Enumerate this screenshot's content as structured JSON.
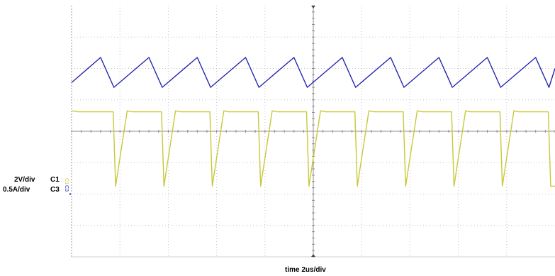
{
  "chart_data": {
    "type": "line",
    "title": "",
    "grid": true,
    "x_divisions": 10,
    "y_divisions": 8,
    "xlabel": "time 2us/div",
    "time_per_div": "2us/div",
    "x_unit": "us",
    "xlim": [
      0,
      20
    ],
    "channels": [
      {
        "id": "C1",
        "scale_label": "2V/div",
        "channel_label": "C1",
        "marker_label": "C1",
        "color": "#c8c83a",
        "ground_div": -2.0,
        "series": [
          {
            "name": "C1",
            "x": [
              0.0,
              0.28,
              0.5,
              0.95,
              1.05,
              1.35,
              1.55,
              1.72,
              1.82,
              2.3,
              2.5,
              2.95,
              3.05,
              3.35,
              3.55,
              3.72,
              3.82,
              4.3,
              4.5,
              4.95,
              5.05,
              5.35,
              5.55,
              5.72,
              5.82,
              6.3,
              6.5,
              6.95,
              7.05,
              7.35,
              7.55,
              7.72,
              7.82,
              8.3,
              8.5,
              8.95,
              9.05,
              9.35,
              9.55,
              9.72,
              9.82,
              10.3,
              10.5,
              10.95,
              11.05,
              11.35,
              11.55,
              11.72,
              11.82,
              12.3,
              12.5,
              12.95,
              13.05,
              13.35,
              13.55,
              13.72,
              13.82,
              14.3,
              14.5,
              14.95,
              15.05,
              15.35,
              15.55,
              15.72,
              15.82,
              16.3,
              16.5,
              16.95,
              17.05,
              17.35,
              17.55,
              17.72,
              17.82,
              18.3,
              18.5,
              18.95,
              19.05,
              19.35,
              19.55,
              19.72,
              19.82,
              20.0
            ],
            "y": [
              0.65,
              0.62,
              0.62,
              0.62,
              0.62,
              0.62,
              0.62,
              0.62,
              -1.75,
              0.65,
              0.62,
              0.62,
              0.62,
              0.62,
              0.62,
              0.62,
              -1.75,
              0.65,
              0.62,
              0.62,
              0.62,
              0.62,
              0.62,
              0.62,
              -1.75,
              0.65,
              0.62,
              0.62,
              0.62,
              0.62,
              0.62,
              0.62,
              -1.75,
              0.65,
              0.62,
              0.62,
              0.62,
              0.62,
              0.62,
              0.62,
              -1.75,
              0.65,
              0.62,
              0.62,
              0.62,
              0.62,
              0.62,
              0.62,
              -1.75,
              0.65,
              0.62,
              0.62,
              0.62,
              0.62,
              0.62,
              0.62,
              -1.75,
              0.65,
              0.62,
              0.62,
              0.62,
              0.62,
              0.62,
              0.62,
              -1.75,
              0.65,
              0.62,
              0.62,
              0.62,
              0.62,
              0.62,
              0.62,
              -1.75,
              0.65,
              0.62,
              0.62,
              0.62,
              0.62,
              0.62,
              0.62,
              -1.75,
              -1.75
            ]
          }
        ]
      },
      {
        "id": "C3",
        "scale_label": "0.5A/div",
        "channel_label": "C3",
        "marker_label": "C3",
        "color": "#2424b0",
        "ground_div": -2.0,
        "series": [
          {
            "name": "C3",
            "x": [
              0.0,
              1.2,
              1.75,
              3.2,
              3.75,
              5.2,
              5.75,
              7.2,
              7.75,
              9.2,
              9.75,
              11.2,
              11.75,
              13.2,
              13.75,
              15.2,
              15.75,
              17.2,
              17.75,
              19.2,
              19.75,
              20.0
            ],
            "y": [
              1.55,
              2.35,
              1.4,
              2.35,
              1.4,
              2.35,
              1.4,
              2.35,
              1.4,
              2.35,
              1.4,
              2.35,
              1.4,
              2.35,
              1.4,
              2.35,
              1.4,
              2.35,
              1.4,
              2.35,
              1.4,
              2.0
            ]
          }
        ]
      }
    ]
  }
}
